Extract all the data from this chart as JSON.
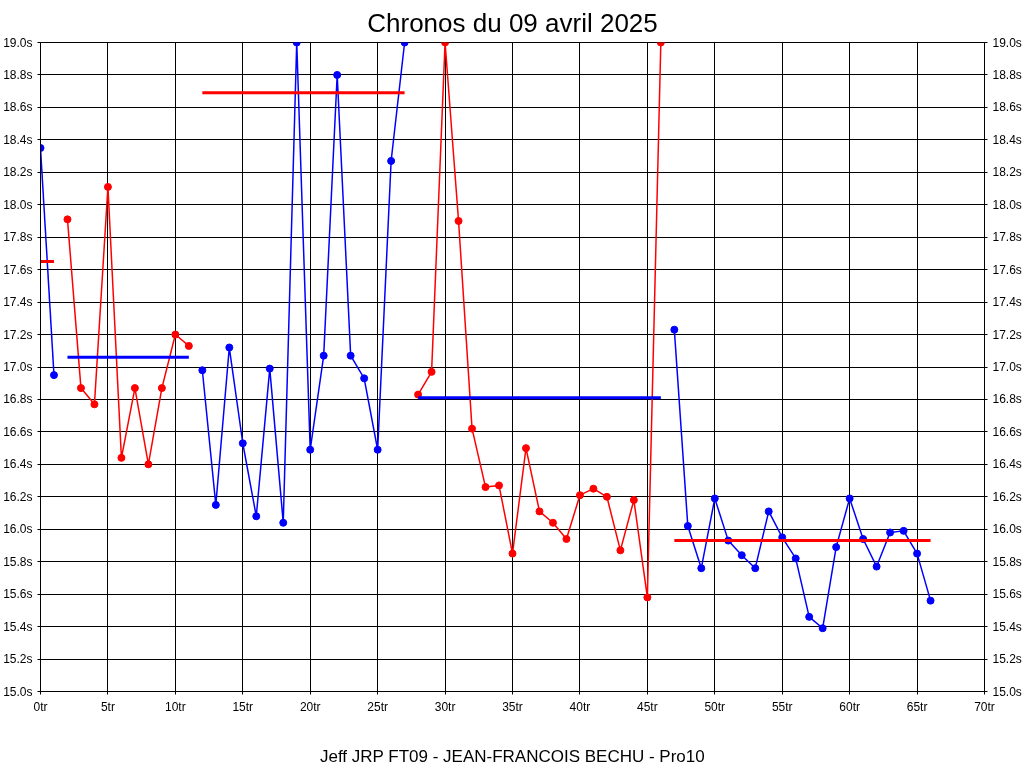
{
  "chart_data": {
    "type": "line",
    "title": "Chronos du 09 avril 2025",
    "xlabel": "Jeff JRP FT09 - JEAN-FRANCOIS BECHU - Pro10",
    "xlim": [
      0,
      70
    ],
    "xticks": [
      {
        "value": 0,
        "label": "0tr"
      },
      {
        "value": 5,
        "label": "5tr"
      },
      {
        "value": 10,
        "label": "10tr"
      },
      {
        "value": 15,
        "label": "15tr"
      },
      {
        "value": 20,
        "label": "20tr"
      },
      {
        "value": 25,
        "label": "25tr"
      },
      {
        "value": 30,
        "label": "30tr"
      },
      {
        "value": 35,
        "label": "35tr"
      },
      {
        "value": 40,
        "label": "40tr"
      },
      {
        "value": 45,
        "label": "45tr"
      },
      {
        "value": 50,
        "label": "50tr"
      },
      {
        "value": 55,
        "label": "55tr"
      },
      {
        "value": 60,
        "label": "60tr"
      },
      {
        "value": 65,
        "label": "65tr"
      },
      {
        "value": 70,
        "label": "70tr"
      }
    ],
    "ylim": [
      15.0,
      19.0
    ],
    "yticks": [
      {
        "value": 15.0,
        "label": "15.0s"
      },
      {
        "value": 15.2,
        "label": "15.2s"
      },
      {
        "value": 15.4,
        "label": "15.4s"
      },
      {
        "value": 15.6,
        "label": "15.6s"
      },
      {
        "value": 15.8,
        "label": "15.8s"
      },
      {
        "value": 16.0,
        "label": "16.0s"
      },
      {
        "value": 16.2,
        "label": "16.2s"
      },
      {
        "value": 16.4,
        "label": "16.4s"
      },
      {
        "value": 16.6,
        "label": "16.6s"
      },
      {
        "value": 16.8,
        "label": "16.8s"
      },
      {
        "value": 17.0,
        "label": "17.0s"
      },
      {
        "value": 17.2,
        "label": "17.2s"
      },
      {
        "value": 17.4,
        "label": "17.4s"
      },
      {
        "value": 17.6,
        "label": "17.6s"
      },
      {
        "value": 17.8,
        "label": "17.8s"
      },
      {
        "value": 18.0,
        "label": "18.0s"
      },
      {
        "value": 18.2,
        "label": "18.2s"
      },
      {
        "value": 18.4,
        "label": "18.4s"
      },
      {
        "value": 18.6,
        "label": "18.6s"
      },
      {
        "value": 18.8,
        "label": "18.8s"
      },
      {
        "value": 19.0,
        "label": "19.0s"
      }
    ],
    "y2lim": [
      15.0,
      19.0
    ],
    "y2ticks": [
      {
        "value": 15.0,
        "label": "15.0s"
      },
      {
        "value": 15.2,
        "label": "15.2s"
      },
      {
        "value": 15.4,
        "label": "15.4s"
      },
      {
        "value": 15.6,
        "label": "15.6s"
      },
      {
        "value": 15.8,
        "label": "15.8s"
      },
      {
        "value": 16.0,
        "label": "16.0s"
      },
      {
        "value": 16.2,
        "label": "16.2s"
      },
      {
        "value": 16.4,
        "label": "16.4s"
      },
      {
        "value": 16.6,
        "label": "16.6s"
      },
      {
        "value": 16.8,
        "label": "16.8s"
      },
      {
        "value": 17.0,
        "label": "17.0s"
      },
      {
        "value": 17.2,
        "label": "17.2s"
      },
      {
        "value": 17.4,
        "label": "17.4s"
      },
      {
        "value": 17.6,
        "label": "17.6s"
      },
      {
        "value": 17.8,
        "label": "17.8s"
      },
      {
        "value": 18.0,
        "label": "18.0s"
      },
      {
        "value": 18.2,
        "label": "18.2s"
      },
      {
        "value": 18.4,
        "label": "18.4s"
      },
      {
        "value": 18.6,
        "label": "18.6s"
      },
      {
        "value": 18.8,
        "label": "18.8s"
      },
      {
        "value": 19.0,
        "label": "19.0s"
      }
    ],
    "grid": true,
    "marker": "circle",
    "line_style": "solid",
    "series": [
      {
        "color": "#0000ff",
        "x": [
          0,
          1
        ],
        "values": [
          18.35,
          16.95
        ]
      },
      {
        "color": "#ff0000",
        "x": [
          2,
          3,
          4,
          5,
          6,
          7,
          8,
          9,
          10,
          11
        ],
        "values": [
          17.91,
          16.87,
          16.77,
          18.11,
          16.44,
          16.87,
          16.4,
          16.87,
          17.2,
          17.13
        ]
      },
      {
        "color": "#0000ff",
        "x": [
          12,
          13,
          14,
          15,
          16,
          17,
          18,
          19,
          20,
          21,
          22,
          23,
          24,
          25,
          26,
          27
        ],
        "values": [
          16.98,
          16.15,
          17.12,
          16.53,
          16.08,
          16.99,
          16.04,
          19.0,
          16.49,
          17.07,
          18.8,
          17.07,
          16.93,
          16.49,
          18.27,
          19.0
        ]
      },
      {
        "color": "#ff0000",
        "x": [
          28,
          29,
          30,
          31,
          32,
          33,
          34,
          35,
          36,
          37,
          38,
          39,
          40,
          41,
          42,
          43,
          44,
          45,
          46
        ],
        "values": [
          16.83,
          16.97,
          19.0,
          17.9,
          16.62,
          16.26,
          16.27,
          15.85,
          16.5,
          16.11,
          16.04,
          15.94,
          16.21,
          16.25,
          16.2,
          15.87,
          16.18,
          15.58,
          19.0
        ]
      },
      {
        "color": "#0000ff",
        "x": [
          47,
          48,
          49,
          50,
          51,
          52,
          53,
          54,
          55,
          56,
          57,
          58,
          59,
          60,
          61,
          62,
          63,
          64,
          65,
          66
        ],
        "values": [
          17.23,
          16.02,
          15.76,
          16.19,
          15.93,
          15.84,
          15.76,
          16.11,
          15.95,
          15.82,
          15.46,
          15.39,
          15.89,
          16.19,
          15.94,
          15.77,
          15.98,
          15.99,
          15.85,
          15.56
        ]
      },
      {
        "color": "#ff0000",
        "marker": "none",
        "x": [
          0,
          1
        ],
        "values": [
          17.65,
          17.65
        ]
      },
      {
        "color": "#0000ff",
        "marker": "none",
        "x": [
          2,
          11
        ],
        "values": [
          17.06,
          17.06
        ]
      },
      {
        "color": "#ff0000",
        "marker": "none",
        "x": [
          12,
          27
        ],
        "values": [
          18.69,
          18.69
        ]
      },
      {
        "color": "#0000ff",
        "marker": "none",
        "x": [
          28,
          46
        ],
        "values": [
          16.81,
          16.81
        ]
      },
      {
        "color": "#ff0000",
        "marker": "none",
        "x": [
          47,
          66
        ],
        "values": [
          15.93,
          15.93
        ]
      }
    ]
  }
}
